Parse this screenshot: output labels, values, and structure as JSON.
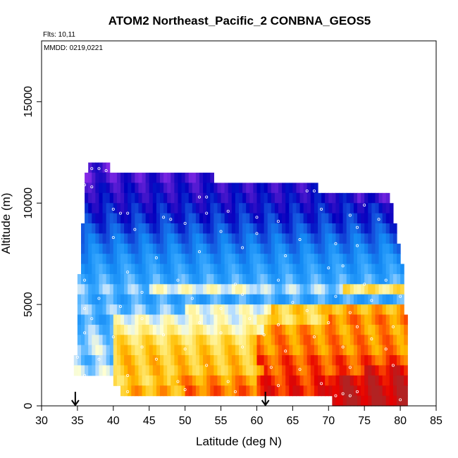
{
  "chart_data": {
    "type": "heatmap",
    "title": "ATOM2 Northeast_Pacific_2 CONBNA_GEOS5",
    "flights_note": "Flts: 10,11",
    "dates_note": "MMDD: 0219,0221",
    "xlabel": "Latitude (deg N)",
    "ylabel": "Altitude (m)",
    "xlim": [
      30,
      85
    ],
    "ylim": [
      0,
      18000
    ],
    "x_ticks": [
      "30",
      "35",
      "40",
      "45",
      "50",
      "55",
      "60",
      "65",
      "70",
      "75",
      "80",
      "85"
    ],
    "y_ticks": [
      "0",
      "5000",
      "10000",
      "15000"
    ],
    "y_tick_values": [
      0,
      5000,
      10000,
      15000
    ],
    "x_tick_values": [
      30,
      35,
      40,
      45,
      50,
      55,
      60,
      65,
      70,
      75,
      80,
      85
    ],
    "grid": false,
    "band_altitude_step_m": 500,
    "bands": [
      {
        "alt": 11500,
        "segments": [
          [
            36.5,
            39.5,
            0.95
          ]
        ]
      },
      {
        "alt": 11000,
        "segments": [
          [
            36,
            38.5,
            0.95
          ],
          [
            38.5,
            54,
            0.93
          ]
        ]
      },
      {
        "alt": 10500,
        "segments": [
          [
            36,
            68.5,
            0.9
          ]
        ]
      },
      {
        "alt": 10000,
        "segments": [
          [
            36,
            74,
            0.88
          ],
          [
            74,
            78.5,
            0.92
          ]
        ]
      },
      {
        "alt": 9500,
        "segments": [
          [
            36,
            79,
            0.85
          ]
        ]
      },
      {
        "alt": 9000,
        "segments": [
          [
            36,
            79,
            0.82
          ]
        ]
      },
      {
        "alt": 8500,
        "segments": [
          [
            35.5,
            79.5,
            0.78
          ]
        ]
      },
      {
        "alt": 8000,
        "segments": [
          [
            35.5,
            79.5,
            0.74
          ]
        ]
      },
      {
        "alt": 7500,
        "segments": [
          [
            35.5,
            80,
            0.7
          ]
        ]
      },
      {
        "alt": 7000,
        "segments": [
          [
            35.5,
            80,
            0.66
          ]
        ]
      },
      {
        "alt": 6500,
        "segments": [
          [
            35.5,
            80.5,
            0.63
          ]
        ]
      },
      {
        "alt": 6000,
        "segments": [
          [
            35,
            80.5,
            0.6
          ]
        ]
      },
      {
        "alt": 5500,
        "segments": [
          [
            35,
            45,
            0.55
          ],
          [
            45,
            60,
            0.45
          ],
          [
            60,
            72,
            0.52
          ],
          [
            72,
            80.5,
            0.35
          ]
        ]
      },
      {
        "alt": 5000,
        "segments": [
          [
            35,
            80.5,
            0.6
          ]
        ]
      },
      {
        "alt": 4500,
        "segments": [
          [
            35,
            50,
            0.55
          ],
          [
            50,
            62,
            0.45
          ],
          [
            62,
            70,
            0.3
          ],
          [
            70,
            80.5,
            0.25
          ]
        ]
      },
      {
        "alt": 4000,
        "segments": [
          [
            35,
            40,
            0.6
          ],
          [
            40,
            60,
            0.45
          ],
          [
            60,
            70,
            0.32
          ],
          [
            70,
            81,
            0.2
          ]
        ]
      },
      {
        "alt": 3500,
        "segments": [
          [
            35,
            40,
            0.55
          ],
          [
            40,
            61,
            0.4
          ],
          [
            61,
            81,
            0.22
          ]
        ]
      },
      {
        "alt": 3000,
        "segments": [
          [
            35,
            40,
            0.52
          ],
          [
            40,
            60,
            0.33
          ],
          [
            60,
            81,
            0.2
          ]
        ]
      },
      {
        "alt": 2500,
        "segments": [
          [
            35,
            40,
            0.5
          ],
          [
            40,
            60,
            0.3
          ],
          [
            60,
            81,
            0.2
          ]
        ]
      },
      {
        "alt": 2000,
        "segments": [
          [
            34.5,
            40,
            0.55
          ],
          [
            40,
            60,
            0.28
          ],
          [
            60,
            81,
            0.15
          ]
        ]
      },
      {
        "alt": 1500,
        "segments": [
          [
            34.5,
            40,
            0.5
          ],
          [
            40,
            61,
            0.28
          ],
          [
            61,
            75,
            0.15
          ],
          [
            75,
            81,
            0.08
          ]
        ]
      },
      {
        "alt": 1000,
        "segments": [
          [
            40,
            48,
            0.3
          ],
          [
            48,
            60,
            0.22
          ],
          [
            60,
            70,
            0.12
          ],
          [
            70,
            81,
            0.05
          ]
        ]
      },
      {
        "alt": 500,
        "segments": [
          [
            41,
            50,
            0.25
          ],
          [
            50,
            60,
            0.18
          ],
          [
            60,
            70,
            0.1
          ],
          [
            70,
            81,
            0.03
          ]
        ]
      },
      {
        "alt": 0,
        "segments": [
          [
            70.5,
            81,
            0.02
          ]
        ]
      }
    ],
    "arrows": [
      {
        "latitude": 34.7,
        "label": ""
      },
      {
        "latitude": 61.2,
        "label": ""
      }
    ],
    "sample_points": [
      [
        37,
        11700
      ],
      [
        38,
        11700
      ],
      [
        39,
        11600
      ],
      [
        36,
        10900
      ],
      [
        37,
        10800
      ],
      [
        52,
        10300
      ],
      [
        53,
        10300
      ],
      [
        67,
        10600
      ],
      [
        68,
        10600
      ],
      [
        75,
        9900
      ],
      [
        40,
        9700
      ],
      [
        41,
        9500
      ],
      [
        42,
        9500
      ],
      [
        47,
        9300
      ],
      [
        48,
        9200
      ],
      [
        50,
        9000
      ],
      [
        53,
        9500
      ],
      [
        56,
        9600
      ],
      [
        60,
        9300
      ],
      [
        63,
        9100
      ],
      [
        69,
        9700
      ],
      [
        73,
        9400
      ],
      [
        74,
        8800
      ],
      [
        77,
        9200
      ],
      [
        43,
        8700
      ],
      [
        40,
        8300
      ],
      [
        55,
        8600
      ],
      [
        60,
        8500
      ],
      [
        66,
        8200
      ],
      [
        71,
        8000
      ],
      [
        74,
        7900
      ],
      [
        64,
        7400
      ],
      [
        46,
        7300
      ],
      [
        52,
        7600
      ],
      [
        58,
        7800
      ],
      [
        70,
        6800
      ],
      [
        72,
        6900
      ],
      [
        36,
        6200
      ],
      [
        42,
        6600
      ],
      [
        49,
        6200
      ],
      [
        57,
        6000
      ],
      [
        63,
        6200
      ],
      [
        75,
        6000
      ],
      [
        78,
        6200
      ],
      [
        38,
        5300
      ],
      [
        44,
        5600
      ],
      [
        51,
        5300
      ],
      [
        58,
        5500
      ],
      [
        65,
        5100
      ],
      [
        71,
        5400
      ],
      [
        76,
        5200
      ],
      [
        80,
        5400
      ],
      [
        36,
        4800
      ],
      [
        41,
        4900
      ],
      [
        55,
        4800
      ],
      [
        67,
        4700
      ],
      [
        73,
        4600
      ],
      [
        37,
        4300
      ],
      [
        44,
        4300
      ],
      [
        52,
        4100
      ],
      [
        59,
        4300
      ],
      [
        63,
        4000
      ],
      [
        70,
        4100
      ],
      [
        74,
        3900
      ],
      [
        79,
        3900
      ],
      [
        36,
        3600
      ],
      [
        40,
        3400
      ],
      [
        47,
        3500
      ],
      [
        55,
        3600
      ],
      [
        61,
        3500
      ],
      [
        68,
        3400
      ],
      [
        76,
        3300
      ],
      [
        44,
        2900
      ],
      [
        50,
        2800
      ],
      [
        58,
        2900
      ],
      [
        64,
        2700
      ],
      [
        72,
        2900
      ],
      [
        78,
        2800
      ],
      [
        35,
        2400
      ],
      [
        38,
        2300
      ],
      [
        46,
        2300
      ],
      [
        53,
        2000
      ],
      [
        62,
        1900
      ],
      [
        66,
        1800
      ],
      [
        73,
        1900
      ],
      [
        79,
        2000
      ],
      [
        36,
        1500
      ],
      [
        42,
        1500
      ],
      [
        49,
        1200
      ],
      [
        56,
        1200
      ],
      [
        63,
        1000
      ],
      [
        69,
        1100
      ],
      [
        72,
        600
      ],
      [
        74,
        700
      ],
      [
        42,
        700
      ],
      [
        50,
        800
      ],
      [
        57,
        700
      ],
      [
        71,
        500
      ],
      [
        73,
        500
      ],
      [
        80,
        300
      ]
    ]
  }
}
